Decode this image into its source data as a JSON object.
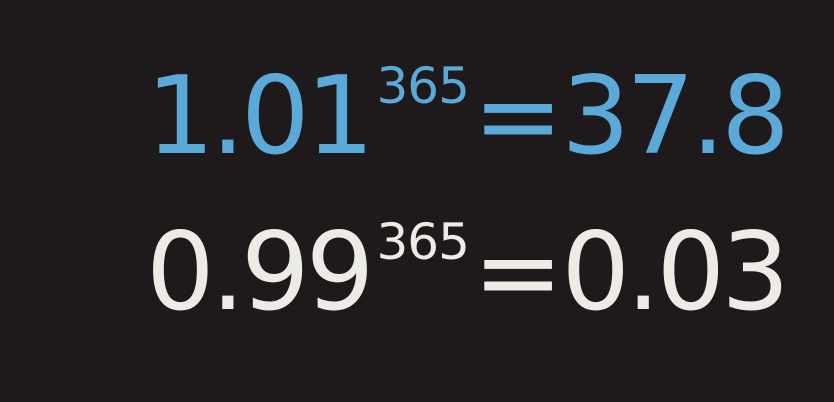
{
  "colors": {
    "background": "#1e1a1b",
    "equation_1": "#5aa9d8",
    "equation_2": "#ecebe6"
  },
  "equations": [
    {
      "base": "1.01",
      "exponent": "365",
      "operator": "=",
      "result": "37.8"
    },
    {
      "base": "0.99",
      "exponent": "365",
      "operator": "=",
      "result": "0.03"
    }
  ]
}
